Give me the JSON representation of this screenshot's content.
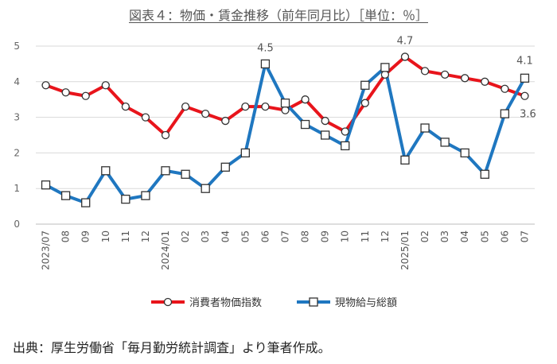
{
  "title": "図表４：物価・賃金推移（前年同月比）［単位：％］",
  "source": "出典：厚生労働省「毎月勤労統計調査」より筆者作成。",
  "colors": {
    "cpi": "#e8141b",
    "wage": "#1f77c0"
  },
  "chart_data": {
    "type": "line",
    "categories": [
      "2023/07",
      "08",
      "09",
      "10",
      "11",
      "12",
      "2024/01",
      "02",
      "03",
      "04",
      "05",
      "06",
      "07",
      "08",
      "09",
      "10",
      "11",
      "12",
      "2025/01",
      "02",
      "03",
      "04",
      "05",
      "06",
      "07"
    ],
    "ylim": [
      0,
      5
    ],
    "yticks": [
      "0",
      "1",
      "2",
      "3",
      "4",
      "5"
    ],
    "grid": true,
    "legend_position": "bottom",
    "series": [
      {
        "name": "消費者物価指数",
        "values": [
          3.9,
          3.7,
          3.6,
          3.9,
          3.3,
          3.0,
          2.5,
          3.3,
          3.1,
          2.9,
          3.3,
          3.3,
          3.2,
          3.5,
          2.9,
          2.6,
          3.4,
          4.2,
          4.7,
          4.3,
          4.2,
          4.1,
          4.0,
          3.8,
          3.6
        ],
        "marker": "circle"
      },
      {
        "name": "現物給与総額",
        "values": [
          1.1,
          0.8,
          0.6,
          1.5,
          0.7,
          0.8,
          1.5,
          1.4,
          1.0,
          1.6,
          2.0,
          4.5,
          3.4,
          2.8,
          2.5,
          2.2,
          3.9,
          4.4,
          1.8,
          2.7,
          2.3,
          2.0,
          1.4,
          3.1,
          4.1
        ],
        "marker": "square"
      }
    ],
    "annotations": [
      {
        "series": 1,
        "index": 11,
        "text": "4.5"
      },
      {
        "series": 0,
        "index": 18,
        "text": "4.7"
      },
      {
        "series": 1,
        "index": 24,
        "text": "4.1"
      },
      {
        "series": 0,
        "index": 24,
        "text": "3.6"
      }
    ]
  }
}
